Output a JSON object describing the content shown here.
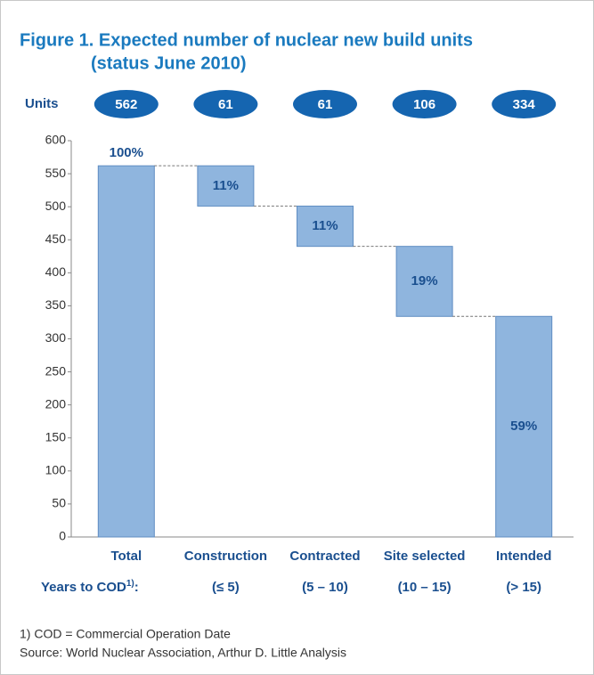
{
  "chart_data": {
    "type": "waterfall",
    "title_lines": [
      "Figure 1.  Expected number of nuclear new build units",
      "(status June 2010)"
    ],
    "units_label": "Units",
    "categories": [
      "Total",
      "Construction",
      "Contracted",
      "Site selected",
      "Intended"
    ],
    "values": [
      562,
      61,
      61,
      106,
      334
    ],
    "measures": [
      "total",
      "decrease",
      "decrease",
      "decrease",
      "total"
    ],
    "share_labels": [
      "100%",
      "11%",
      "11%",
      "19%",
      "59%"
    ],
    "years_label": [
      "Years to COD",
      "1)",
      ":"
    ],
    "years": [
      null,
      "(≤ 5)",
      "(5 – 10)",
      "(10 – 15)",
      "(> 15)"
    ],
    "color": "#8fb5de",
    "ylim": [
      0,
      600
    ],
    "yticks": [
      0,
      50,
      100,
      150,
      200,
      250,
      300,
      350,
      400,
      450,
      500,
      550,
      600
    ],
    "grid": false,
    "footnotes": [
      "1) COD = Commercial Operation Date",
      "Source: World Nuclear Association, Arthur D. Little Analysis"
    ]
  }
}
